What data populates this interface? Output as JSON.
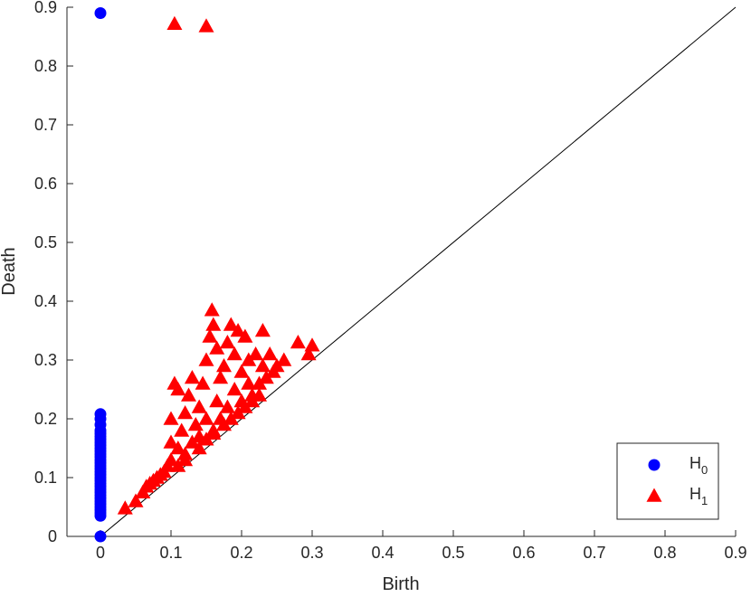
{
  "chart_data": {
    "type": "scatter",
    "xlabel": "Birth",
    "ylabel": "Death",
    "xlim": [
      0,
      0.9
    ],
    "ylim": [
      0,
      0.9
    ],
    "xticks": [
      "0",
      "0.1",
      "0.2",
      "0.3",
      "0.4",
      "0.5",
      "0.6",
      "0.7",
      "0.8",
      "0.9"
    ],
    "yticks": [
      "0",
      "0.1",
      "0.2",
      "0.3",
      "0.4",
      "0.5",
      "0.6",
      "0.7",
      "0.8",
      "0.9"
    ],
    "grid": false,
    "legend_position": "bottom-right",
    "diagonal": true,
    "series": [
      {
        "name": "H",
        "subscript": "0",
        "marker": "circle",
        "color": "#0000ff",
        "points": [
          [
            0,
            0.89
          ],
          [
            0,
            0.0
          ],
          [
            0,
            0.035
          ],
          [
            0,
            0.04
          ],
          [
            0,
            0.045
          ],
          [
            0,
            0.05
          ],
          [
            0,
            0.055
          ],
          [
            0,
            0.06
          ],
          [
            0,
            0.065
          ],
          [
            0,
            0.07
          ],
          [
            0,
            0.075
          ],
          [
            0,
            0.08
          ],
          [
            0,
            0.085
          ],
          [
            0,
            0.09
          ],
          [
            0,
            0.095
          ],
          [
            0,
            0.1
          ],
          [
            0,
            0.105
          ],
          [
            0,
            0.11
          ],
          [
            0,
            0.115
          ],
          [
            0,
            0.12
          ],
          [
            0,
            0.125
          ],
          [
            0,
            0.13
          ],
          [
            0,
            0.135
          ],
          [
            0,
            0.14
          ],
          [
            0,
            0.145
          ],
          [
            0,
            0.15
          ],
          [
            0,
            0.155
          ],
          [
            0,
            0.16
          ],
          [
            0,
            0.165
          ],
          [
            0,
            0.17
          ],
          [
            0,
            0.175
          ],
          [
            0,
            0.18
          ],
          [
            0,
            0.19
          ],
          [
            0,
            0.2
          ],
          [
            0,
            0.208
          ]
        ]
      },
      {
        "name": "H",
        "subscript": "1",
        "marker": "triangle",
        "color": "#ff0000",
        "points": [
          [
            0.105,
            0.872
          ],
          [
            0.15,
            0.868
          ],
          [
            0.035,
            0.048
          ],
          [
            0.05,
            0.06
          ],
          [
            0.06,
            0.075
          ],
          [
            0.065,
            0.085
          ],
          [
            0.07,
            0.09
          ],
          [
            0.075,
            0.095
          ],
          [
            0.08,
            0.1
          ],
          [
            0.085,
            0.105
          ],
          [
            0.09,
            0.11
          ],
          [
            0.095,
            0.12
          ],
          [
            0.1,
            0.13
          ],
          [
            0.1,
            0.16
          ],
          [
            0.1,
            0.2
          ],
          [
            0.105,
            0.26
          ],
          [
            0.11,
            0.25
          ],
          [
            0.11,
            0.15
          ],
          [
            0.115,
            0.18
          ],
          [
            0.12,
            0.21
          ],
          [
            0.12,
            0.14
          ],
          [
            0.125,
            0.24
          ],
          [
            0.13,
            0.16
          ],
          [
            0.13,
            0.27
          ],
          [
            0.135,
            0.19
          ],
          [
            0.14,
            0.22
          ],
          [
            0.14,
            0.17
          ],
          [
            0.145,
            0.26
          ],
          [
            0.15,
            0.3
          ],
          [
            0.15,
            0.2
          ],
          [
            0.155,
            0.34
          ],
          [
            0.158,
            0.385
          ],
          [
            0.16,
            0.36
          ],
          [
            0.16,
            0.18
          ],
          [
            0.165,
            0.32
          ],
          [
            0.165,
            0.23
          ],
          [
            0.17,
            0.27
          ],
          [
            0.17,
            0.2
          ],
          [
            0.175,
            0.29
          ],
          [
            0.18,
            0.33
          ],
          [
            0.18,
            0.22
          ],
          [
            0.185,
            0.36
          ],
          [
            0.19,
            0.25
          ],
          [
            0.19,
            0.31
          ],
          [
            0.195,
            0.35
          ],
          [
            0.2,
            0.28
          ],
          [
            0.2,
            0.23
          ],
          [
            0.205,
            0.34
          ],
          [
            0.21,
            0.26
          ],
          [
            0.21,
            0.3
          ],
          [
            0.215,
            0.24
          ],
          [
            0.22,
            0.31
          ],
          [
            0.225,
            0.26
          ],
          [
            0.23,
            0.35
          ],
          [
            0.23,
            0.29
          ],
          [
            0.235,
            0.27
          ],
          [
            0.24,
            0.31
          ],
          [
            0.245,
            0.28
          ],
          [
            0.25,
            0.29
          ],
          [
            0.26,
            0.3
          ],
          [
            0.28,
            0.33
          ],
          [
            0.295,
            0.31
          ],
          [
            0.3,
            0.325
          ],
          [
            0.175,
            0.19
          ],
          [
            0.185,
            0.2
          ],
          [
            0.195,
            0.21
          ],
          [
            0.205,
            0.22
          ],
          [
            0.215,
            0.23
          ],
          [
            0.225,
            0.24
          ],
          [
            0.14,
            0.15
          ],
          [
            0.12,
            0.13
          ],
          [
            0.11,
            0.12
          ],
          [
            0.15,
            0.165
          ],
          [
            0.16,
            0.175
          ]
        ]
      }
    ]
  }
}
